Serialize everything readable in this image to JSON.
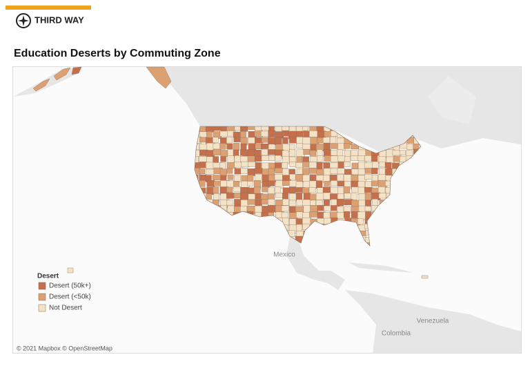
{
  "header": {
    "brand": "THIRD WAY"
  },
  "title": "Education Deserts by Commuting Zone",
  "map": {
    "places": [
      "Mexico",
      "Venezuela",
      "Colombia"
    ],
    "attribution": "© 2021 Mapbox © OpenStreetMap"
  },
  "legend": {
    "title": "Desert",
    "items": [
      {
        "label": "Desert (50k+)",
        "color": "#c4704c"
      },
      {
        "label": "Desert (<50k)",
        "color": "#dba173"
      },
      {
        "label": "Not Desert",
        "color": "#f3e2c6"
      }
    ]
  }
}
